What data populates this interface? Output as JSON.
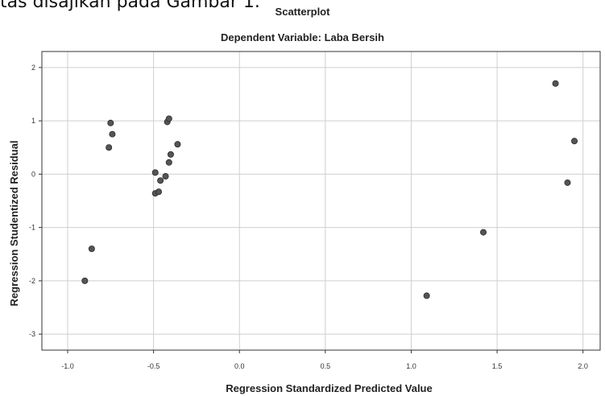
{
  "document_text": "tas disajikan pada Gambar 1.",
  "chart_data": {
    "type": "scatter",
    "title": "Scatterplot",
    "subtitle": "Dependent Variable: Laba Bersih",
    "xlabel": "Regression Standardized Predicted Value",
    "ylabel": "Regression Studentized Residual",
    "xlim": [
      -1.15,
      2.1
    ],
    "ylim": [
      -3.3,
      2.3
    ],
    "xticks": [
      -1.0,
      -0.5,
      0.0,
      0.5,
      1.0,
      1.5,
      2.0
    ],
    "xtick_labels": [
      "-1.0",
      "-0.5",
      "0.0",
      "0.5",
      "1.0",
      "1.5",
      "2.0"
    ],
    "yticks": [
      -3,
      -2,
      -1,
      0,
      1,
      2
    ],
    "ytick_labels": [
      "-3",
      "-2",
      "-1",
      "0",
      "1",
      "2"
    ],
    "grid": true,
    "marker_color": "#555555",
    "points": [
      {
        "x": -0.9,
        "y": -2.0
      },
      {
        "x": -0.86,
        "y": -1.4
      },
      {
        "x": -0.76,
        "y": 0.5
      },
      {
        "x": -0.75,
        "y": 0.96
      },
      {
        "x": -0.74,
        "y": 0.75
      },
      {
        "x": -0.49,
        "y": 0.03
      },
      {
        "x": -0.49,
        "y": -0.36
      },
      {
        "x": -0.47,
        "y": -0.33
      },
      {
        "x": -0.46,
        "y": -0.12
      },
      {
        "x": -0.43,
        "y": -0.04
      },
      {
        "x": -0.42,
        "y": 0.98
      },
      {
        "x": -0.41,
        "y": 1.04
      },
      {
        "x": -0.41,
        "y": 0.22
      },
      {
        "x": -0.4,
        "y": 0.37
      },
      {
        "x": -0.36,
        "y": 0.56
      },
      {
        "x": 1.09,
        "y": -2.28
      },
      {
        "x": 1.42,
        "y": -1.09
      },
      {
        "x": 1.84,
        "y": 1.7
      },
      {
        "x": 1.91,
        "y": -0.16
      },
      {
        "x": 1.95,
        "y": 0.62
      }
    ]
  }
}
